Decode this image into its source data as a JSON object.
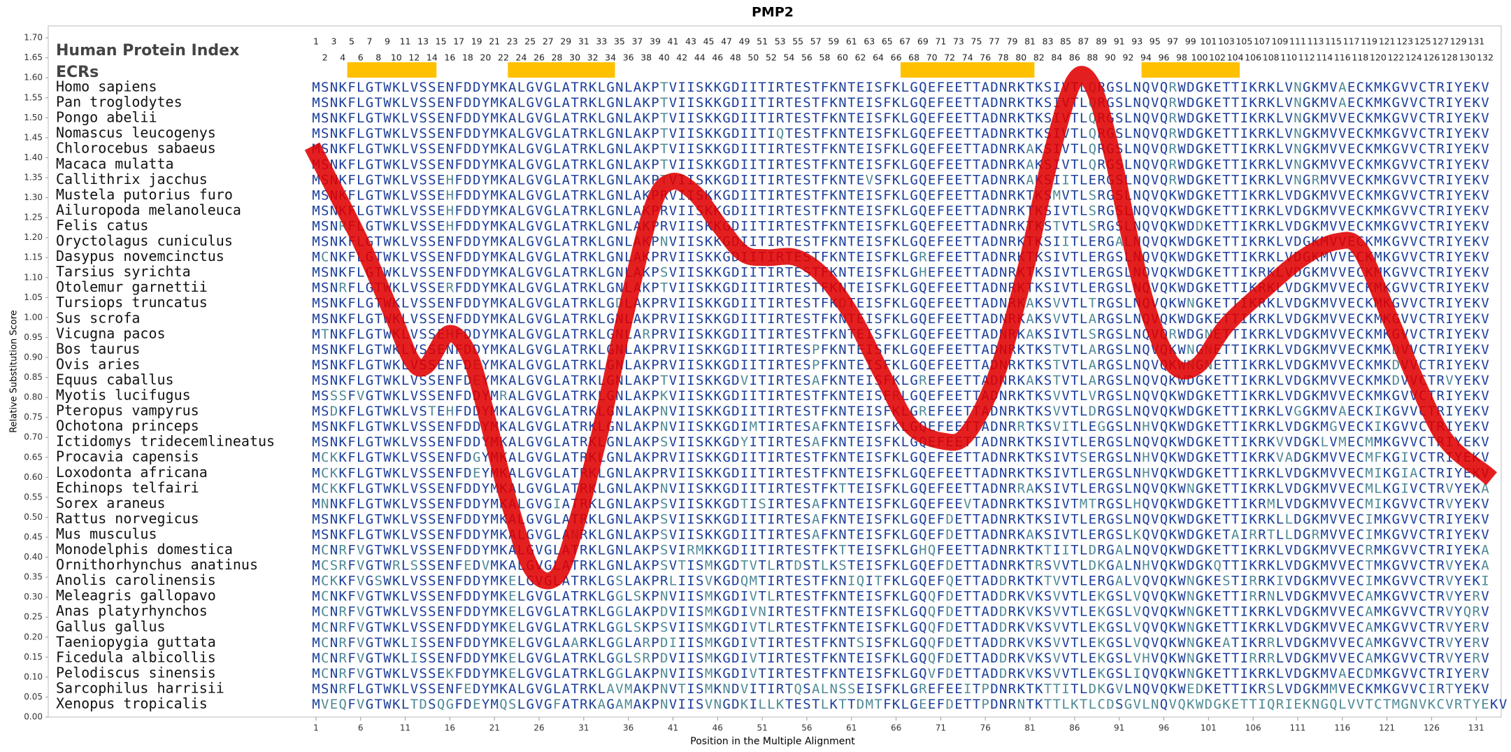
{
  "chart_data": {
    "type": "line",
    "title": "PMP2",
    "x_label": "Position in the Multiple Alignment",
    "y_label": "Relative Substitution Score",
    "color": "#e00000",
    "xlim": [
      -29,
      133.8
    ],
    "ylim": [
      0,
      1.73
    ],
    "xticks": [
      1,
      6,
      11,
      16,
      21,
      26,
      31,
      36,
      41,
      46,
      51,
      56,
      61,
      66,
      71,
      76,
      81,
      86,
      91,
      96,
      101,
      106,
      111,
      116,
      121,
      126,
      131
    ],
    "yticks": [
      {
        "value": 0,
        "label": "0.00"
      },
      {
        "value": 0.05,
        "label": "0.05"
      },
      {
        "value": 0.1,
        "label": "0.10"
      },
      {
        "value": 0.15,
        "label": "0.15"
      },
      {
        "value": 0.2,
        "label": "0.20"
      },
      {
        "value": 0.25,
        "label": "0.25"
      },
      {
        "value": 0.3,
        "label": "0.30"
      },
      {
        "value": 0.35,
        "label": "0.35"
      },
      {
        "value": 0.4,
        "label": "0.40"
      },
      {
        "value": 0.45,
        "label": "0.45"
      },
      {
        "value": 0.5,
        "label": "0.50"
      },
      {
        "value": 0.55,
        "label": "0.55"
      },
      {
        "value": 0.6,
        "label": "0.60"
      },
      {
        "value": 0.65,
        "label": "0.65"
      },
      {
        "value": 0.7,
        "label": "0.70"
      },
      {
        "value": 0.75,
        "label": "0.75"
      },
      {
        "value": 0.8,
        "label": "0.80"
      },
      {
        "value": 0.85,
        "label": "0.85"
      },
      {
        "value": 0.9,
        "label": "0.90"
      },
      {
        "value": 0.95,
        "label": "0.95"
      },
      {
        "value": 1,
        "label": "1.00"
      },
      {
        "value": 1.05,
        "label": "1.05"
      },
      {
        "value": 1.1,
        "label": "1.10"
      },
      {
        "value": 1.15,
        "label": "1.15"
      },
      {
        "value": 1.2,
        "label": "1.20"
      },
      {
        "value": 1.25,
        "label": "1.25"
      },
      {
        "value": 1.3,
        "label": "1.30"
      },
      {
        "value": 1.35,
        "label": "1.35"
      },
      {
        "value": 1.4,
        "label": "1.40"
      },
      {
        "value": 1.45,
        "label": "1.45"
      },
      {
        "value": 1.5,
        "label": "1.50"
      },
      {
        "value": 1.55,
        "label": "1.55"
      },
      {
        "value": 1.6,
        "label": "1.60"
      },
      {
        "value": 1.65,
        "label": "1.65"
      },
      {
        "value": 1.7,
        "label": "1.70"
      }
    ],
    "x": [
      1,
      6,
      9.7,
      11.8,
      13.4,
      15.9,
      18.3,
      20.4,
      22.6,
      25.2,
      27.9,
      30,
      32.8,
      35.4,
      38.6,
      40.8,
      43.5,
      46.2,
      48.9,
      51.5,
      54.8,
      58,
      61.2,
      64.4,
      67.6,
      71.4,
      74,
      77.3,
      80.5,
      83.2,
      85.9,
      88,
      90.2,
      92.3,
      94.5,
      97.1,
      99.8,
      103,
      107.3,
      111.6,
      115.4,
      118,
      121.3,
      124.5,
      127.7,
      132
    ],
    "values": [
      1.41,
      1.19,
      1.0,
      0.89,
      0.88,
      0.96,
      0.9,
      0.73,
      0.54,
      0.37,
      0.35,
      0.47,
      0.71,
      0.98,
      1.27,
      1.34,
      1.31,
      1.23,
      1.16,
      1.15,
      1.15,
      1.1,
      1.0,
      0.86,
      0.73,
      0.69,
      0.71,
      0.86,
      1.12,
      1.39,
      1.59,
      1.58,
      1.41,
      1.19,
      1.0,
      0.88,
      0.88,
      0.98,
      1.07,
      1.15,
      1.19,
      1.17,
      1.0,
      0.83,
      0.69,
      0.61
    ],
    "alignment": {
      "index_label": "Human Protein Index",
      "ecr_label": "ECRs",
      "ecr_color": "#ffc000",
      "positions": [
        1,
        2,
        3,
        4,
        5,
        6,
        7,
        8,
        9,
        10,
        11,
        12,
        13,
        14,
        15,
        16,
        17,
        18,
        19,
        20,
        21,
        22,
        23,
        24,
        25,
        26,
        27,
        28,
        29,
        30,
        31,
        32,
        33,
        34,
        35,
        36,
        37,
        38,
        39,
        40,
        41,
        42,
        43,
        44,
        45,
        46,
        47,
        48,
        49,
        50,
        51,
        52,
        53,
        54,
        55,
        56,
        57,
        58,
        59,
        60,
        61,
        62,
        63,
        64,
        65,
        66,
        67,
        68,
        69,
        70,
        71,
        72,
        73,
        74,
        75,
        76,
        77,
        78,
        79,
        80,
        81,
        82,
        83,
        84,
        85,
        86,
        87,
        88,
        89,
        90,
        91,
        92,
        93,
        94,
        95,
        96,
        97,
        98,
        99,
        100,
        101,
        102,
        103,
        104,
        105,
        106,
        107,
        108,
        109,
        110,
        111,
        112,
        113,
        114,
        115,
        116,
        117,
        118,
        119,
        120,
        121,
        122,
        123,
        124,
        125,
        126,
        127,
        128,
        129,
        130,
        131,
        132
      ],
      "ecrs": [
        {
          "start": 5,
          "end": 14
        },
        {
          "start": 23,
          "end": 34
        },
        {
          "start": 67,
          "end": 81
        },
        {
          "start": 94,
          "end": 104
        }
      ],
      "species": [
        {
          "name": "Homo sapiens",
          "sequence": "MSNKFLGTWKLVSSENFDDYMKALGVGLATRKLGNLAKPTVIISKKGDIITIRTESTFKNTEISFKLGQEFEETTADNRKTKSIVTLQRGSLNQVQRWDGKETTIKRKLVNGKMVAECKMKGVVCTRIYEKV"
        },
        {
          "name": "Pan troglodytes",
          "sequence": "MSNKFLGTWKLVSSENFDDYMKALGVGLATRKLGNLAKPTVIISKKGDIITIRTESTFKNTEISFKLGQEFEETTADNRKTKSIVTLQRGSLNQVQRWDGKETTIKRKLVNGKMVAECKMKGVVCTRIYEKV"
        },
        {
          "name": "Pongo abelii",
          "sequence": "MSNKFLGTWKLVSSENFDDYMKALGVGLATRKLGNLAKPTVIISKKGDIITIRTESTFKNTEISFKLGQEFEETTADNRKTKSIVTLQRGSLNQVQRWDGKETTIKRKLVNGKMVVECKMKGVVCTRIYEKV"
        },
        {
          "name": "Nomascus leucogenys",
          "sequence": "MSNKFLGTWKLVSSENFDDYMKALGVGLATRKLGNLAKPTVIISKKGDIITIQTESTFKNTEISFKLGQEFEETTADNRKTKSIVTLQRGSLNQVQRWDGKETTIKRKLVNGKMVVECKMKGVVCTRIYEKV"
        },
        {
          "name": "Chlorocebus sabaeus",
          "sequence": "MSNKFLGTWKLVSSENFDDYMKALGVGLATRKLGNLAKPTVIISKKGDIITIRTESTFKNTEISFKLGQEFEETTADNRKAKSIVTLQRGSLNQVQRWDGKETTIKRKLVNGKMVVECKMKGVVCTRIYEKV"
        },
        {
          "name": "Macaca mulatta",
          "sequence": "MSNKFLGTWKLVSSENFDDYMKALGVGLATRKLGNLAKPTVIISKKGDIITIRTESTFKNTEISFKLGQEFEETTADNRKAKSIVTLQRGSLNQVQRWDGKETTIKRKLVNGKMVVECKMKGVVCTRIYEKV"
        },
        {
          "name": "Callithrix jacchus",
          "sequence": "MSNKFLGTWKLVSSEHFDDYMKALGVGLATRKLGNLAKPTVIISKKGDIITIRTESTFKNTEVSFKLGQEFEETTADNRKAKSIITLERGSLNQVQRWDGKETTIKRKLVNGRMVVECKMKGVVCTRIYEKV"
        },
        {
          "name": "Mustela putorius furo",
          "sequence": "MSNKFLGTWKLVSSEHFDDYMKALGVGLATRKLGNLAKPRVIISKKGDIITIRTESTFKNTEISFKLGQEFEETTADNRKTKSMVTLSRGSLNQVQKWDGKETTIKRKLVDGKMVVECKMKGVVCTRIYEKV"
        },
        {
          "name": "Ailuropoda melanoleuca",
          "sequence": "MSNKFLGTWKLVSSEHFDDYMKALGVGLATRKLGNLAKPRVIISKKGDIITIRTESTFKNTEISFKLGQEFEETTADNRKTKSIVTLSRGSLNQVQKWDGKETTIKRKLVDGKMVVECKMKGVVCTRIYEKV"
        },
        {
          "name": "Felis catus",
          "sequence": "MSNRFLGTWKLVSSEHFDDYMKALGVGLATRKLGNLAKPRVIISKKGDIITIRTESTFKNTEISFKLGQEFEETTADNRKTKSTVTLSRGSLNQVQKWDDKETTIKRKLVDGKMVVECKMKGVVCTRIYEKV"
        },
        {
          "name": "Oryctolagus cuniculus",
          "sequence": "MSNKFLGTWKLVSSENFDDYMKALGVGLATRKLGNLAKPNVIISKKGDIITIRTESTFKNTEISFKLGQEFEETTADNRKTKSIITLERGALNQVQKWDGKETTIKRKLVDGKMVVECKMKGVVCTRIYEKV"
        },
        {
          "name": "Dasypus novemcinctus",
          "sequence": "MCNKFLGTWKLVSSENFDDYMKALGVGLATRKLGNLAKPRVIISKKGDIITIRTESTFKNTEISFKLGREFEETTADNRKTKSIVTLERGSLNQVQKWDGKETTIKRKLVDGKMVVECKMKGVVCTRIYEKV"
        },
        {
          "name": "Tarsius syrichta",
          "sequence": "MSNKFLGTWKLVSSENFDDYMKALGVGLATRKLGNLAKPSVIISKKGDIITIRTESTFKNTEISFKLGHEFEETTADNRKTKSIVTLERGSLNQVQKWDGKETTIKRKLVDGKMVVECKMKGVVCTRIYEKV"
        },
        {
          "name": "Otolemur garnettii",
          "sequence": "MSNRFLGTWKLVSSERFDDYMKALGVGLATRKLGNLAKPTVIISKKGDIITIRTESTFKNTEISFKLGQEFEETTADNRKTKSIVTLERGSLNQVQKWDGKETTIKRKLVDGKMVVECKMKGVVCTRIYEKV"
        },
        {
          "name": "Tursiops truncatus",
          "sequence": "MSNKFLGTWKLVSSENFDDYMKALGVGLATRKLGDLAKPRVIISKKGDIITIRTESTFKDTEISFKLGQEFEETTADNRKAKSVVTLTRGSLNQVQKWNGKETTIKRKLVDGKMVVECKMKGVVCTRIYEKV"
        },
        {
          "name": "Sus scrofa",
          "sequence": "MSNKFLGTWKLVSSENFDDYMKALGVGLATRKLGNLAKPRVIISKKGDIITIRTESTFKNTEISFKLGQEFEETTADNRKAKSVVTLARGSLNQVQKWDGKETTIKRKLVDGKMVVECKMKGVVCTRIYEKV"
        },
        {
          "name": "Vicugna pacos",
          "sequence": "MTNKFLGTWKLVSSEHFDDYMKALGVGLATRKLGNLARPRVIISKKGDIITIRTESTFKNTEISFKLGQEFEETTADNRKAKSIVTLSRGSLNQVQRWDGNETTIKRKLVDGKMVVECKMKGVVCTRIYEKV"
        },
        {
          "name": "Bos taurus",
          "sequence": "MSNKFLGTWKLVSSENFDDYMKALGVGLATRKLGNLAKPRVIISKKGDIITIRTESPFKNTEISFKLGQEFEETTADNRKTKSTVTLARGSLNQVQKWNGNETTIKRKLVDGKMVVECKMKDVVCTRIYEKV"
        },
        {
          "name": "Ovis aries",
          "sequence": "MSNKFLGTWKLVSSENFDEYMKALGVGLATRKLGNLAKPRVIISKKGDIITIRTESPFKNTEISFKLGQEFEETTADNRKTKSTVTLARGSLNQVQKWNGNETTIKRKLVDGKMVVECKMKDVVCTRIYEKV"
        },
        {
          "name": "Equus caballus",
          "sequence": "MSNKFLGTWKLVSSENFDEYMKALGVGLATRKLGNLAKPTVIISKKGDVITIRTESAFKNTEISFKLGREFEETTADNRKAKSTVTLARGSLNQVQKWDGKETTIKRKLVDGKMVVECKMKDVVCTRVYEKV"
        },
        {
          "name": "Myotis lucifugus",
          "sequence": "MSSSFVGTWKLVSSENFDDYMRALGVGLATRKLGNLAKPKVIISKKGDIITIRTESTFKNTEISFRLGQEFEETTADNRKTKSVVTLVRGSLNQVQKWDGKETTIKRKLVDGKMVVECKMKGVVCTRIYEKV"
        },
        {
          "name": "Pteropus vampyrus",
          "sequence": "MSDKFLGTWKLVSTEHFDDYMKALGVGLATRKLGNLAKPNVIISKKGDIITIRTESTFKNTEISFKLGREFEETTADNRKTKSVVTLDRGSLNQVQKWDGKETTIKRKLVGGKMVAECKIKGVVCTRIYEKV"
        },
        {
          "name": "Ochotona princeps",
          "sequence": "MSNKFLGTWKLVSSENFDDYMKALGVGLATRKLGNLAKPNVIISKKGDIMTIRTESAFKNTEISFKLGQEFEETTADNRRTKSVITLEGGSLNHVQKWDGKETTIKRKLVDGKMGVECKIKGVVCTRIYEKV"
        },
        {
          "name": "Ictidomys tridecemlineatus",
          "sequence": "MSNKFLGTWKLVSSENFDDYMKALGVGLATRKLGNLAKPSVIISKKGDYITIRTESAFKNTEISFKLGQEFEETTADNRKTKSIVTLERGSLNQVQKWDGKETTIKRKVVDGKLVMECMMKGVVCTRIYEKV"
        },
        {
          "name": "Procavia capensis",
          "sequence": "MCKKFLGTWKLVSSENFDGYMKALGVGLATRKLGNLAKPRVIISKKGDIITIRTESTFKNTEISFKLGQEFEETTADNRKTKSIVTSERGSLNHVQKWDGKETTIKRKVADGKMVVECMFKGIVCTRIYEKV"
        },
        {
          "name": "Loxodonta africana",
          "sequence": "MCKKFLGTWKLVSSENFDEYMKALGVGLATRKLGNLAKPRVIISKKGDIITIRTESTFKNTEISFKLGQEFEETTADNRKTKSIVTLERGSLNHVQKWDGKETTIKRKLVDGKMVVECMIKGIACTRIYEKV"
        },
        {
          "name": "Echinops telfairi",
          "sequence": "MCKKFLGTWKLVSSENFDDYMKALGVGLATRKLGNLAKPNVIISKKGDIITIRTESTFKTTEISFKLGQEFEETTADNRRAKSIVTLERGSLNQVQKWNGKETTIKRKLVDGKMVVECMLKGIVCTRVYEKA"
        },
        {
          "name": "Sorex araneus",
          "sequence": "MNNKFLGTWKLVSSENFDDYMKALGVGIATRKLGNLAKPSVIISKKGDTISIRTESAFKNTEISFKLGQEFEEVTADNRKTKSIVTMTRGSLHQVQKWDGKETTIKRMLVDGKMVVECMIKGVVCTRVYEKV"
        },
        {
          "name": "Rattus norvegicus",
          "sequence": "MSNKFLGTWKLVSSENFDDYMKALGVGLATRKLGNLAKPSVIISKKGDIITIRTESAFKNTEISFKLGQEFDETTADNRKTKSIVTLERGSLNQVQKWDGKETTIKRKLLDGKMVVECIMKGVVCTRIYEKV"
        },
        {
          "name": "Mus musculus",
          "sequence": "MSNKFLGTWKLVSSENFDDYMKALGVGLANRKLGNLAKPSVIISKKGDIITIRTESAFKNTEISFKLGQEFDETTADNRKAKSIVTLERGSLKQVQKWDGKETAIRRTLLDGRMVVECIMKGVVCTRIYEKV"
        },
        {
          "name": "Monodelphis domestica",
          "sequence": "MCNRFVGTWKLVSSENFDDYMKALGVGLATRKLGNLAKPSVIRMKKGDIITIRTESTFKTTEISFKLGHQFEETTADNRKTKTIITLDRGALNQVQKWDGKETTIKRKLVDGKMVVECRMKGVVCTRIYEKA"
        },
        {
          "name": "Ornithorhynchus anatinus",
          "sequence": "MCSRFVGTWRLSSSENFEDVMKALGVGLATRKLGNLAKPSVTISMKGDTVTLRTDSTLKSTEISFKLGQEFDETTADNRKTRSVVTLDKGALNHVQKWDGKQTTIKRKLVDGKMVVECTMKGVVCTRVYEKA"
        },
        {
          "name": "Anolis carolinensis",
          "sequence": "MCKKFVGSWKLVSSENFDDYMKELGVGLATRKLGSLAKPRLIISVKGDQMTIRTESTFKNIQITFKLGQEFQETTADDRKTKTVVTLERGALVQVQKWNGKESTIRRKIVDGKMVVECIMKGVVCTRVYEKI"
        },
        {
          "name": "Meleagris gallopavo",
          "sequence": "MCNKFVGTWKLVSSENFDDYMKELGVGLATRKLGGLSKPNVIISMKGDIVTLRTESTFKNTEISFKLGQQFDETTADDRKVKSVVTLEKGSLVQVQKWNGKETTIRRNLVDGKMVVECAMKGVVCTRVYERV"
        },
        {
          "name": "Anas platyrhynchos",
          "sequence": "MCNRFVGTWKLVSSENFDDYMKELGVGLATRKLGGLAKPDVIISMKGDIVNIRTESTFKNTEISFKLGQQFDETTADDRKVKSVVTLEKGSLVQVQKWNGKETTIKRKLVDGKMVVECAMKGVVCTRVYQRV"
        },
        {
          "name": "Gallus gallus",
          "sequence": "MCNRFVGTWKLVSSENFDDYMKELGVGLATRKLGGLSKPSVIISMKGDIVTLRTESTFKNTEISFKLGQQFDETTADDRKVKSVVTLEKGSLVQVQKWNGKETTIKRKLVDGKMVVECAMKGVVCTRVYERV"
        },
        {
          "name": "Taeniopygia guttata",
          "sequence": "MCNRFVGTWKLISSENFDDYMKELGVGLAARKLGGLARPDIIISMKGDIVTIRTESTFKNTSISFKLGQQFDETTADDRKVKSVVTLEKGSLVQVQKWNGKEATIKRRLVDGKMVVECAMKGVVCTRVYERV"
        },
        {
          "name": "Ficedula albicollis",
          "sequence": "MCNRFVGTWKLISSENFDDYMKELGVGLATRKLGGLSRPDVIISMKGDIVTIRTESTFKNTEISFKLGQQFDETTADDRKVKSVVTLEKGSLVHVQKWNGKETTIRRRLVDGKMVVECAMKGVVCTRVYERV"
        },
        {
          "name": "Pelodiscus sinensis",
          "sequence": "MCNRFVGTWKLVSSEKFDDYMKELGVGLATRKLGGLAKPNVIISMKGDIVTIRTESTFKNTEISFKLGQVFDETTADDRKVKSVVTLEKGSLIQVQKWNGKETTIKRKLVDGKMVAECDMKGVVCTRIYERV"
        },
        {
          "name": "Sarcophilus harrisii",
          "sequence": "MSNRFLGTWKLVSSENFEDYMKALGVGLATRKLAVMAKPNVTISMKNDVITIRTQSALNSSEISFKLGREFEEITPDNRKTKTTITLDKGVLNQVQKWEDKETTIKRSLVDGKMMVECKMKGVVCIRTYEKV"
        },
        {
          "name": "Xenopus tropicalis",
          "sequence": "MVEQFVGTWKLTDSQGFDEYMQSLGVGFATRKAGAMAKPNVIISVNGDKILLKTESTLKTTDMTFKLGEEFDETTPDNRNTKTTLKTLCDSGVLNQVQKWDGKETTIQRIEKNGQLVVTCTMGNVKCVRTYEKV"
        }
      ]
    }
  }
}
